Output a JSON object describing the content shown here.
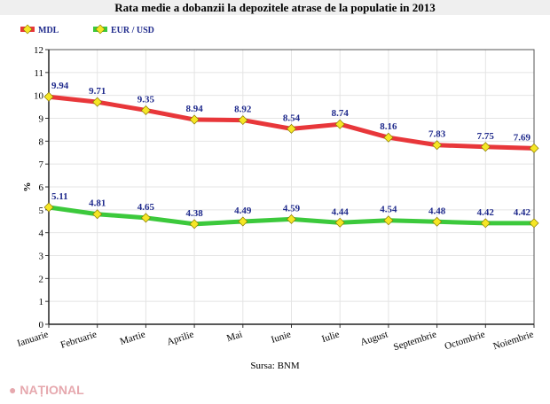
{
  "chart_data": {
    "type": "line",
    "title": "Rata medie a dobanzii la depozitele atrase de la populatie in 2013",
    "ylabel": "%",
    "xlabel": "",
    "ylim": [
      0,
      12
    ],
    "yticks": [
      0,
      1,
      2,
      3,
      4,
      5,
      6,
      7,
      8,
      9,
      10,
      11,
      12
    ],
    "grid": true,
    "legend_position": "top-left",
    "categories": [
      "Ianuarie",
      "Februarie",
      "Martie",
      "Aprilie",
      "Mai",
      "Iunie",
      "Iulie",
      "August",
      "Septembrie",
      "Octombrie",
      "Noiembrie"
    ],
    "series": [
      {
        "name": "MDL",
        "color": "#e8373a",
        "values": [
          9.94,
          9.71,
          9.35,
          8.94,
          8.92,
          8.54,
          8.74,
          8.16,
          7.83,
          7.75,
          7.69
        ]
      },
      {
        "name": "EUR / USD",
        "color": "#3cc93c",
        "values": [
          5.11,
          4.81,
          4.65,
          4.38,
          4.49,
          4.59,
          4.44,
          4.54,
          4.48,
          4.42,
          4.42
        ]
      }
    ],
    "marker_color": "#f5e625",
    "label_color": "#1f2a8c",
    "source": "Sursa: BNM"
  },
  "watermark": "NAȚIONAL"
}
